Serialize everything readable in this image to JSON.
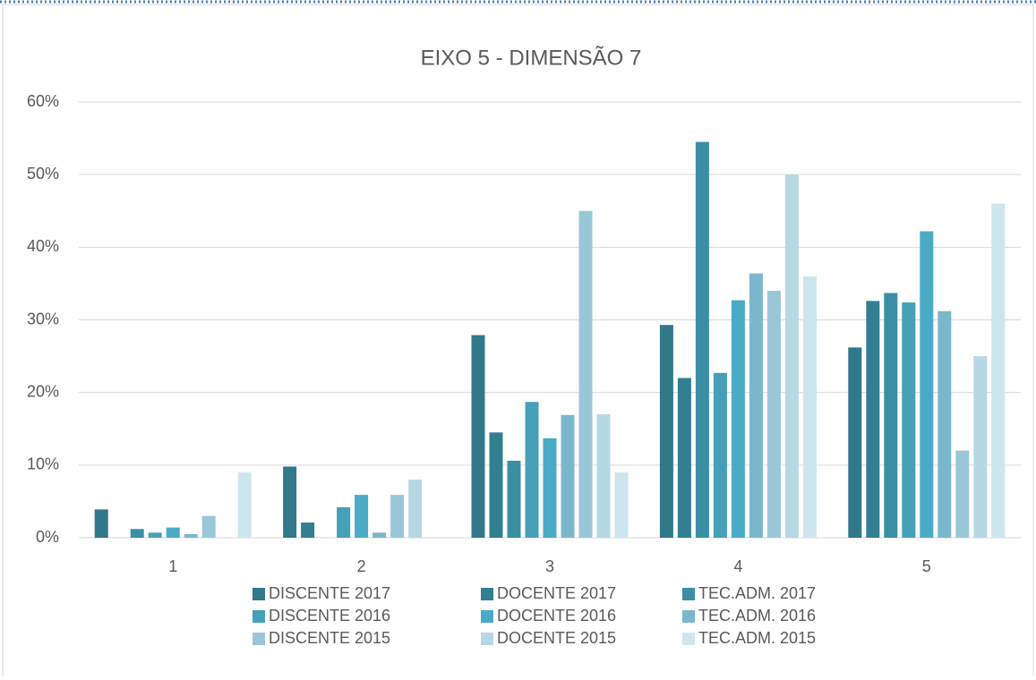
{
  "chart_data": {
    "type": "bar",
    "title": "EIXO 5 - DIMENSÃO 7",
    "categories": [
      "1",
      "2",
      "3",
      "4",
      "5"
    ],
    "series": [
      {
        "name": "DISCENTE 2017",
        "color": "#31788a",
        "values": [
          3.9,
          9.8,
          27.9,
          29.3,
          26.2
        ]
      },
      {
        "name": "DOCENTE 2017",
        "color": "#327f92",
        "values": [
          0,
          2.1,
          14.5,
          22,
          32.6
        ]
      },
      {
        "name": "TEC.ADM. 2017",
        "color": "#3a8fa5",
        "values": [
          1.2,
          0,
          10.6,
          54.5,
          33.7
        ]
      },
      {
        "name": "DISCENTE 2016",
        "color": "#45a0b8",
        "values": [
          0.7,
          4.2,
          18.7,
          22.7,
          32.4
        ]
      },
      {
        "name": "DOCENTE 2016",
        "color": "#4aabc6",
        "values": [
          1.4,
          5.9,
          13.7,
          32.7,
          42.2
        ]
      },
      {
        "name": "TEC.ADM. 2016",
        "color": "#7ab7cc",
        "values": [
          0.5,
          0.7,
          16.9,
          36.4,
          31.2
        ]
      },
      {
        "name": "DISCENTE 2015",
        "color": "#9ac7d7",
        "values": [
          3,
          5.9,
          45,
          34,
          12
        ]
      },
      {
        "name": "DOCENTE 2015",
        "color": "#b6d8e4",
        "values": [
          0,
          8,
          17,
          50,
          25
        ]
      },
      {
        "name": "TEC.ADM. 2015",
        "color": "#cde5ee",
        "values": [
          9,
          0,
          9,
          36,
          46
        ]
      }
    ],
    "ylim": [
      0,
      60
    ],
    "yticks": [
      {
        "value": 0,
        "label": "0%"
      },
      {
        "value": 10,
        "label": "10%"
      },
      {
        "value": 20,
        "label": "20%"
      },
      {
        "value": 30,
        "label": "30%"
      },
      {
        "value": 40,
        "label": "40%"
      },
      {
        "value": 50,
        "label": "50%"
      },
      {
        "value": 60,
        "label": "60%"
      }
    ],
    "grid": true,
    "legend": "bottom"
  }
}
